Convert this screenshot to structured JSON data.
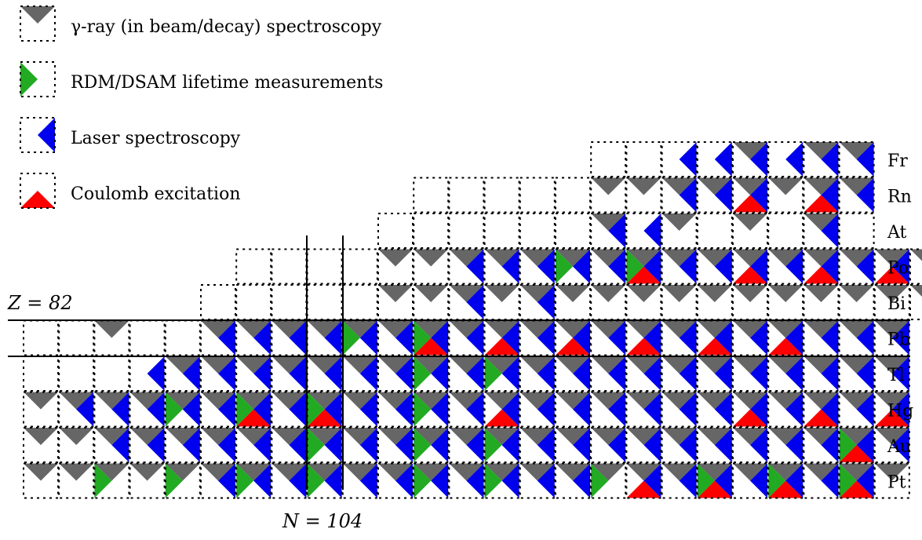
{
  "legend": [
    {
      "label": "γ-ray (in beam/decay) spectroscopy",
      "type": "gamma"
    },
    {
      "label": "RDM/DSAM lifetime measurements",
      "type": "lifetime"
    },
    {
      "label": "Laser spectroscopy",
      "type": "laser"
    },
    {
      "label": "Coulomb excitation",
      "type": "coulex"
    }
  ],
  "colors": {
    "gamma": "#666666",
    "lifetime": "#22aa22",
    "laser": "#0000ee",
    "coulex": "#ff0000"
  },
  "labels": {
    "z_label": "Z = 82",
    "n_label": "N = 104"
  },
  "chart_data": {
    "type": "nuclide-chart",
    "rows": [
      {
        "element": "Fr",
        "start": 16,
        "cells": [
          "",
          "",
          "L",
          "L",
          "GL",
          "L",
          "GL",
          "GL"
        ]
      },
      {
        "element": "Rn",
        "start": 11,
        "cells": [
          "",
          "",
          "",
          "",
          "",
          "G",
          "G",
          "GL",
          "GL",
          "GLC",
          "G",
          "GLC",
          "GL"
        ]
      },
      {
        "element": "At",
        "start": 10,
        "cells": [
          "",
          "",
          "",
          "",
          "",
          "",
          "GL",
          "L",
          "G",
          "",
          "G",
          "",
          "GL",
          ""
        ]
      },
      {
        "element": "Po",
        "start": 6,
        "cells": [
          "",
          "",
          "",
          "",
          "G",
          "G",
          "GL",
          "GL",
          "GL",
          "GLT",
          "GL",
          "GLTC",
          "GL",
          "GL",
          "GLC",
          "GL",
          "GLC",
          "GL",
          "GLC",
          "GL"
        ]
      },
      {
        "element": "Bi",
        "start": 5,
        "cells": [
          "",
          "",
          "",
          "",
          "",
          "G",
          "G",
          "GL",
          "G",
          "GL",
          "G",
          "G",
          "G",
          "G",
          "G",
          "G",
          "G",
          "G",
          "G",
          "G",
          "GL"
        ]
      },
      {
        "element": "Pb",
        "start": 0,
        "cells": [
          "",
          "",
          "G",
          "",
          "",
          "GL",
          "GL",
          "GL",
          "GL",
          "GLT",
          "GL",
          "GLTC",
          "GL",
          "GLC",
          "GL",
          "GLC",
          "GL",
          "GLC",
          "GL",
          "GLC",
          "GL",
          "GLC",
          "GL",
          "GL",
          "GL"
        ]
      },
      {
        "element": "Tl",
        "start": 0,
        "cells": [
          "",
          "",
          "",
          "L",
          "GL",
          "GL",
          "GL",
          "GL",
          "GL",
          "GL",
          "GL",
          "GLT",
          "GL",
          "GLT",
          "GL",
          "GL",
          "GL",
          "GL",
          "GL",
          "GL",
          "GL",
          "GL",
          "GL",
          "GL",
          "GL"
        ]
      },
      {
        "element": "Hg",
        "start": 0,
        "cells": [
          "G",
          "GL",
          "GL",
          "GL",
          "GLT",
          "GL",
          "GLTC",
          "GL",
          "GLTC",
          "GL",
          "GL",
          "GLT",
          "GL",
          "GLC",
          "GL",
          "GL",
          "GL",
          "GL",
          "GL",
          "GL",
          "GLC",
          "GL",
          "GLC",
          "GL",
          "GLC"
        ]
      },
      {
        "element": "Au",
        "start": 0,
        "cells": [
          "G",
          "G",
          "GL",
          "GL",
          "GL",
          "GL",
          "GL",
          "GL",
          "GLT",
          "GL",
          "GL",
          "GLT",
          "GL",
          "GLT",
          "GL",
          "GL",
          "GL",
          "GL",
          "GL",
          "GL",
          "GL",
          "GL",
          "GL",
          "GLTC",
          "GL"
        ]
      },
      {
        "element": "Pt",
        "start": 0,
        "cells": [
          "G",
          "G",
          "GT",
          "G",
          "GT",
          "GL",
          "GLT",
          "GL",
          "GLT",
          "GL",
          "GL",
          "GLT",
          "GL",
          "GLT",
          "GL",
          "GL",
          "GT",
          "GLC",
          "GL",
          "GLTC",
          "GL",
          "GLTC",
          "GL",
          "GLTC",
          "G"
        ]
      }
    ],
    "n_ref_columns": [
      8,
      9
    ],
    "z_ref_element": "Pb"
  }
}
